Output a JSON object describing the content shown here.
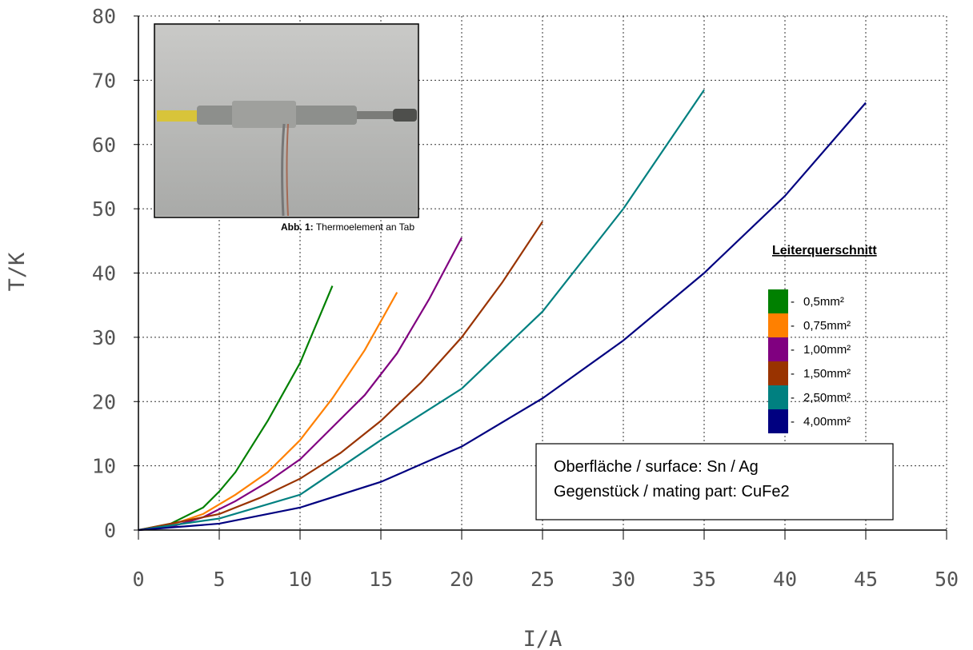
{
  "chart_data": {
    "type": "line",
    "x_label": "I/A",
    "y_label": "T/K",
    "xlim": [
      0,
      50
    ],
    "xticks": [
      0,
      5,
      10,
      15,
      20,
      25,
      30,
      35,
      40,
      45,
      50
    ],
    "ylim": [
      0,
      80
    ],
    "yticks": [
      0,
      10,
      20,
      30,
      40,
      50,
      60,
      70,
      80
    ],
    "grid": true,
    "legend_title": "Leiterquerschnitt",
    "legend_position": "right",
    "series": [
      {
        "name": "0,5mm²",
        "color": "#008000",
        "x": [
          0,
          2,
          4,
          5,
          6,
          8,
          10,
          12
        ],
        "values": [
          0,
          1,
          3.5,
          6,
          9,
          17,
          26,
          38
        ]
      },
      {
        "name": "0,75mm²",
        "color": "#ff8000",
        "x": [
          0,
          2,
          4,
          6,
          8,
          10,
          12,
          14,
          16
        ],
        "values": [
          0,
          0.8,
          2.5,
          5.5,
          9,
          14,
          20.5,
          28,
          37
        ]
      },
      {
        "name": "1,00mm²",
        "color": "#800080",
        "x": [
          0,
          2,
          4,
          6,
          8,
          10,
          12,
          14,
          16,
          18,
          20
        ],
        "values": [
          0,
          0.5,
          2,
          4.5,
          7.5,
          11,
          16,
          21,
          27.5,
          36,
          45.5
        ]
      },
      {
        "name": "1,50mm²",
        "color": "#993300",
        "x": [
          0,
          5,
          7.5,
          10,
          12.5,
          15,
          17.5,
          20,
          22.5,
          25
        ],
        "values": [
          0,
          2.5,
          5,
          8,
          12,
          17,
          23,
          30,
          38.5,
          48
        ]
      },
      {
        "name": "2,50mm²",
        "color": "#008080",
        "x": [
          0,
          5,
          10,
          15,
          20,
          25,
          30,
          35
        ],
        "values": [
          0,
          1.8,
          5.5,
          14,
          22,
          34,
          50,
          68.5
        ]
      },
      {
        "name": "4,00mm²",
        "color": "#000080",
        "x": [
          0,
          5,
          10,
          15,
          20,
          25,
          30,
          35,
          40,
          45
        ],
        "values": [
          0,
          1,
          3.5,
          7.5,
          13,
          20.5,
          29.5,
          40,
          52,
          66.5
        ]
      }
    ],
    "annotation_lines": [
      "Oberfläche / surface: Sn / Ag",
      "Gegenstück / mating part: CuFe2"
    ],
    "inset_caption_label": "Abb. 1:",
    "inset_caption": "Thermoelement an Tab"
  }
}
